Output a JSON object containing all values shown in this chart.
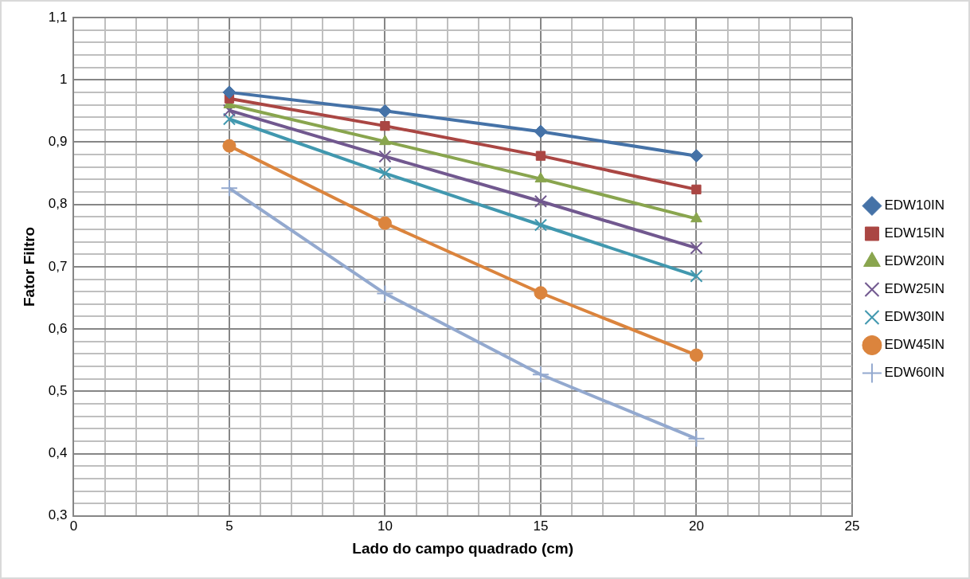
{
  "chart_data": {
    "type": "line",
    "xlabel": "Lado do campo quadrado (cm)",
    "ylabel": "Fator Filtro",
    "x": [
      5,
      10,
      15,
      20
    ],
    "xlim": [
      0,
      25
    ],
    "xticks": [
      0,
      {
        "value": 1,
        "label": null
      },
      {
        "value": 2,
        "label": null
      },
      {
        "value": 3,
        "label": null
      },
      {
        "value": 4,
        "label": null
      },
      5,
      {
        "value": 6,
        "label": null
      },
      {
        "value": 7,
        "label": null
      },
      {
        "value": 8,
        "label": null
      },
      {
        "value": 9,
        "label": null
      },
      10,
      {
        "value": 11,
        "label": null
      },
      {
        "value": 12,
        "label": null
      },
      {
        "value": 13,
        "label": null
      },
      {
        "value": 14,
        "label": null
      },
      15,
      {
        "value": 16,
        "label": null
      },
      {
        "value": 17,
        "label": null
      },
      {
        "value": 18,
        "label": null
      },
      {
        "value": 19,
        "label": null
      },
      20,
      {
        "value": 21,
        "label": null
      },
      {
        "value": 22,
        "label": null
      },
      {
        "value": 23,
        "label": null
      },
      {
        "value": 24,
        "label": null
      },
      25
    ],
    "ylim": [
      0.3,
      1.1
    ],
    "yticks": [
      {
        "value": 0.3,
        "label": "0,3"
      },
      {
        "value": 0.32,
        "label": null
      },
      {
        "value": 0.34,
        "label": null
      },
      {
        "value": 0.36,
        "label": null
      },
      {
        "value": 0.38,
        "label": null
      },
      {
        "value": 0.4,
        "label": "0,4"
      },
      {
        "value": 0.42,
        "label": null
      },
      {
        "value": 0.44,
        "label": null
      },
      {
        "value": 0.46,
        "label": null
      },
      {
        "value": 0.48,
        "label": null
      },
      {
        "value": 0.5,
        "label": "0,5"
      },
      {
        "value": 0.52,
        "label": null
      },
      {
        "value": 0.54,
        "label": null
      },
      {
        "value": 0.56,
        "label": null
      },
      {
        "value": 0.58,
        "label": null
      },
      {
        "value": 0.6,
        "label": "0,6"
      },
      {
        "value": 0.62,
        "label": null
      },
      {
        "value": 0.64,
        "label": null
      },
      {
        "value": 0.66,
        "label": null
      },
      {
        "value": 0.68,
        "label": null
      },
      {
        "value": 0.7,
        "label": "0,7"
      },
      {
        "value": 0.72,
        "label": null
      },
      {
        "value": 0.74,
        "label": null
      },
      {
        "value": 0.76,
        "label": null
      },
      {
        "value": 0.78,
        "label": null
      },
      {
        "value": 0.8,
        "label": "0,8"
      },
      {
        "value": 0.82,
        "label": null
      },
      {
        "value": 0.84,
        "label": null
      },
      {
        "value": 0.86,
        "label": null
      },
      {
        "value": 0.88,
        "label": null
      },
      {
        "value": 0.9,
        "label": "0,9"
      },
      {
        "value": 0.92,
        "label": null
      },
      {
        "value": 0.94,
        "label": null
      },
      {
        "value": 0.96,
        "label": null
      },
      {
        "value": 0.98,
        "label": null
      },
      1,
      {
        "value": 1.02,
        "label": null
      },
      {
        "value": 1.04,
        "label": null
      },
      {
        "value": 1.06,
        "label": null
      },
      {
        "value": 1.08,
        "label": null
      },
      {
        "value": 1.1,
        "label": "1,1"
      }
    ],
    "grid": true,
    "legend": "right",
    "line_style": "solid",
    "series": [
      {
        "name": "EDW10IN",
        "color": "#4572a7",
        "marker": "diamond",
        "values": [
          0.98,
          0.95,
          0.917,
          0.878
        ]
      },
      {
        "name": "EDW15IN",
        "color": "#aa4643",
        "marker": "square",
        "values": [
          0.97,
          0.926,
          0.878,
          0.824
        ]
      },
      {
        "name": "EDW20IN",
        "color": "#89a54e",
        "marker": "triangle",
        "values": [
          0.96,
          0.901,
          0.841,
          0.777
        ]
      },
      {
        "name": "EDW25IN",
        "color": "#71588f",
        "marker": "cross",
        "values": [
          0.951,
          0.877,
          0.805,
          0.73
        ]
      },
      {
        "name": "EDW30IN",
        "color": "#4198af",
        "marker": "cross",
        "values": [
          0.937,
          0.85,
          0.767,
          0.685
        ]
      },
      {
        "name": "EDW45IN",
        "color": "#db843d",
        "marker": "circle",
        "values": [
          0.894,
          0.77,
          0.658,
          0.558
        ]
      },
      {
        "name": "EDW60IN",
        "color": "#93a9cf",
        "marker": "plus",
        "values": [
          0.826,
          0.657,
          0.527,
          0.424
        ]
      }
    ]
  }
}
